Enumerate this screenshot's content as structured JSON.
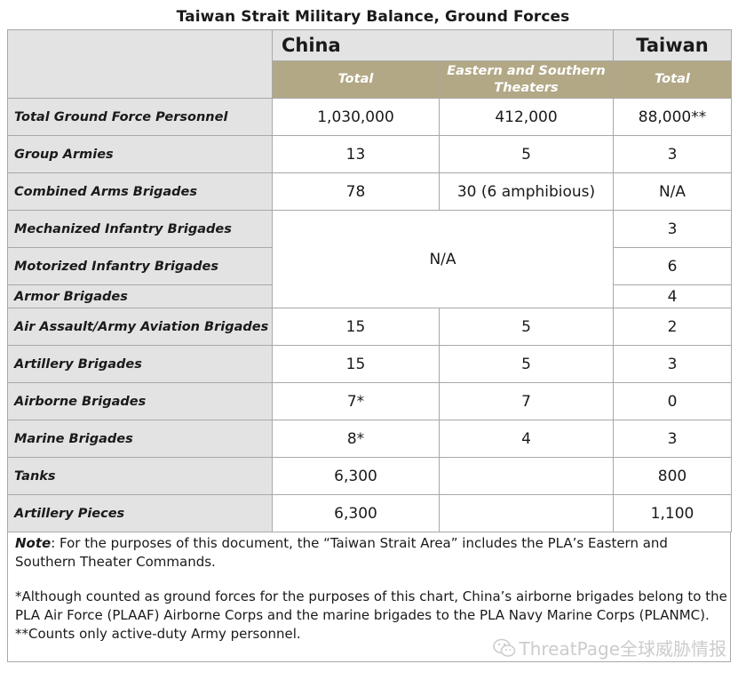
{
  "title": "Taiwan Strait Military Balance, Ground Forces",
  "headers": {
    "china": "China",
    "taiwan": "Taiwan",
    "china_total": "Total",
    "china_eastern_southern": "Eastern and Southern Theaters",
    "taiwan_total": "Total"
  },
  "rows": [
    {
      "label": "Total Ground Force Personnel",
      "china_total": "1,030,000",
      "china_es": "412,000",
      "taiwan": "88,000**"
    },
    {
      "label": "Group Armies",
      "china_total": "13",
      "china_es": "5",
      "taiwan": "3"
    },
    {
      "label": "Combined Arms Brigades",
      "china_total": "78",
      "china_es": "30 (6 amphibious)",
      "taiwan": "N/A"
    },
    {
      "label": "Mechanized Infantry Brigades",
      "taiwan": "3"
    },
    {
      "label": "Motorized Infantry Brigades",
      "taiwan": "6"
    },
    {
      "label": "Armor Brigades",
      "taiwan": "4"
    },
    {
      "label": "Air Assault/Army Aviation Brigades",
      "china_total": "15",
      "china_es": "5",
      "taiwan": "2"
    },
    {
      "label": "Artillery Brigades",
      "china_total": "15",
      "china_es": "5",
      "taiwan": "3"
    },
    {
      "label": "Airborne Brigades",
      "china_total": "7*",
      "china_es": "7",
      "taiwan": "0"
    },
    {
      "label": "Marine Brigades",
      "china_total": "8*",
      "china_es": "4",
      "taiwan": "3"
    },
    {
      "label": "Tanks",
      "china_total": "6,300",
      "china_es": "",
      "taiwan": "800"
    },
    {
      "label": "Artillery Pieces",
      "china_total": "6,300",
      "china_es": "",
      "taiwan": "1,100"
    }
  ],
  "china_merged_na": "N/A",
  "notes": {
    "note_label": "Note",
    "note_text": ": For the purposes of this document, the “Taiwan Strait Area” includes the PLA’s Eastern and Southern Theater Commands.",
    "asterisk_1": "*Although counted as ground forces for the purposes of this chart, China’s airborne brigades belong to the PLA Air Force (PLAAF) Airborne Corps and the marine brigades to the PLA Navy Marine Corps (PLANMC).",
    "asterisk_2": "**Counts only active-duty Army personnel."
  },
  "watermark": "ThreatPage全球威胁情报",
  "colors": {
    "header_band": "#b2a886",
    "label_bg": "#e3e3e3",
    "border": "#a8a8a8"
  }
}
